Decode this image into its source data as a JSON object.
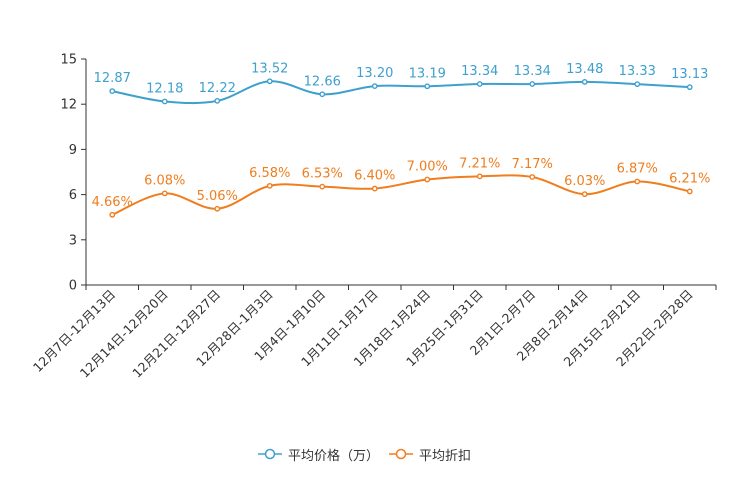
{
  "chart_data": {
    "type": "line",
    "categories": [
      "12月7日-12月13日",
      "12月14日-12月20日",
      "12月21日-12月27日",
      "12月28日-1月3日",
      "1月4日-1月10日",
      "1月11日-1月17日",
      "1月18日-1月24日",
      "1月25日-1月31日",
      "2月1日-2月7日",
      "2月8日-2月14日",
      "2月15日-2月21日",
      "2月22日-2月28日"
    ],
    "ylim": [
      0,
      15
    ],
    "yticks": [
      0,
      3,
      6,
      9,
      12,
      15
    ],
    "series": [
      {
        "name": "平均价格（万）",
        "color": "#3ea0cd",
        "values": [
          12.87,
          12.18,
          12.22,
          13.52,
          12.66,
          13.2,
          13.19,
          13.34,
          13.34,
          13.48,
          13.33,
          13.13
        ],
        "labels": [
          "12.87",
          "12.18",
          "12.22",
          "13.52",
          "12.66",
          "13.20",
          "13.19",
          "13.34",
          "13.34",
          "13.48",
          "13.33",
          "13.13"
        ]
      },
      {
        "name": "平均折扣",
        "color": "#f07d1e",
        "values": [
          4.66,
          6.08,
          5.06,
          6.58,
          6.53,
          6.4,
          7.0,
          7.21,
          7.17,
          6.03,
          6.87,
          6.21
        ],
        "labels": [
          "4.66%",
          "6.08%",
          "5.06%",
          "6.58%",
          "6.53%",
          "6.40%",
          "7.00%",
          "7.21%",
          "7.17%",
          "6.03%",
          "6.87%",
          "6.21%"
        ]
      }
    ],
    "legend": "bottom"
  }
}
